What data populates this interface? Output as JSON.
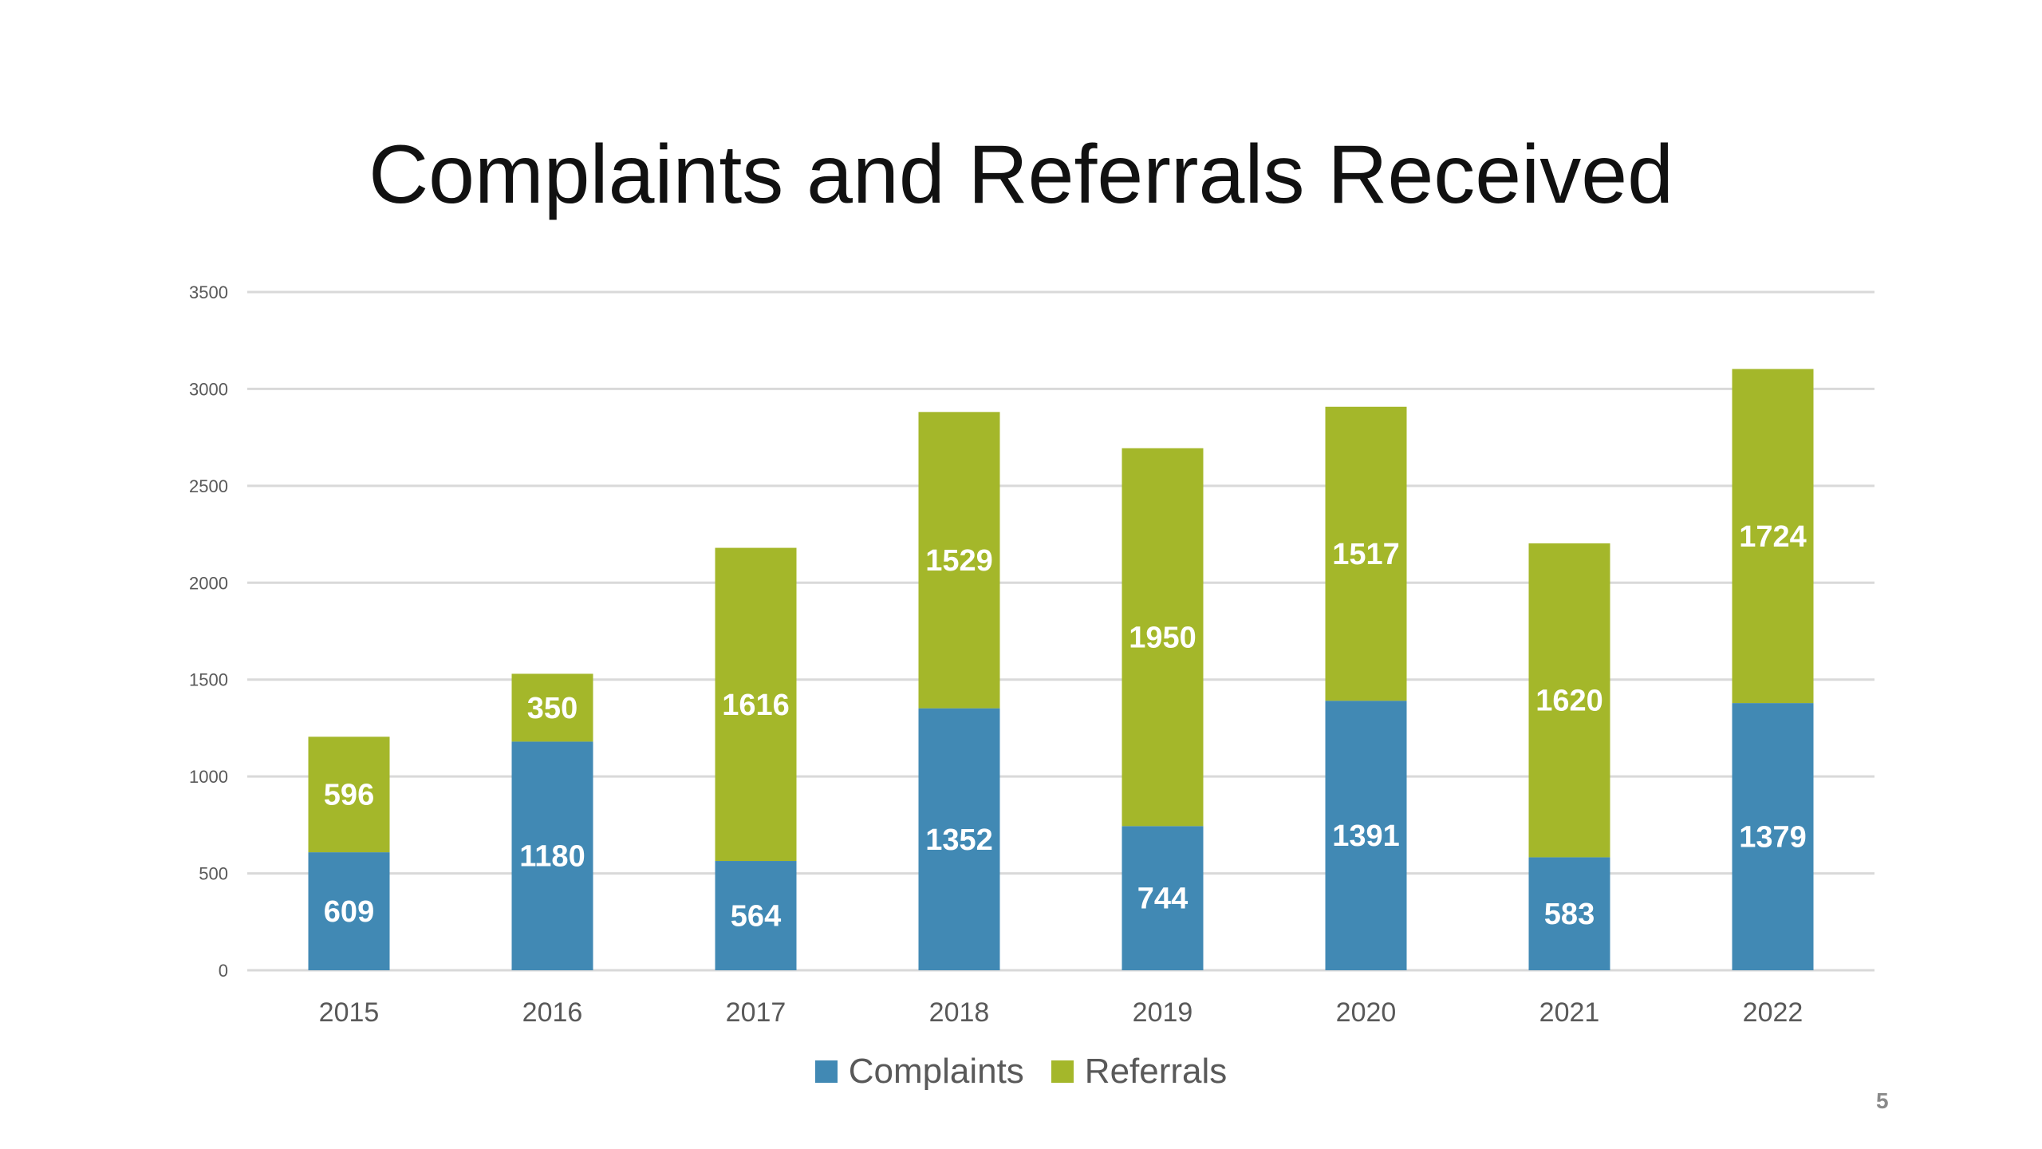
{
  "slide": {
    "title": "Complaints and Referrals Received",
    "page_number": "5"
  },
  "colors": {
    "complaints": "#4189b4",
    "referrals": "#a4b72a",
    "grid": "#d9d9d9",
    "axis_text": "#595959",
    "label_text": "#ffffff"
  },
  "chart_data": {
    "type": "bar",
    "stacked": true,
    "title": "",
    "xlabel": "",
    "ylabel": "",
    "categories": [
      "2015",
      "2016",
      "2017",
      "2018",
      "2019",
      "2020",
      "2021",
      "2022"
    ],
    "series": [
      {
        "name": "Complaints",
        "values": [
          609,
          1180,
          564,
          1352,
          744,
          1391,
          583,
          1379
        ]
      },
      {
        "name": "Referrals",
        "values": [
          596,
          350,
          1616,
          1529,
          1950,
          1517,
          1620,
          1724
        ]
      }
    ],
    "ylim": [
      0,
      3500
    ],
    "yticks": [
      0,
      500,
      1000,
      1500,
      2000,
      2500,
      3000,
      3500
    ],
    "grid": true,
    "legend_position": "bottom",
    "data_labels": true
  }
}
